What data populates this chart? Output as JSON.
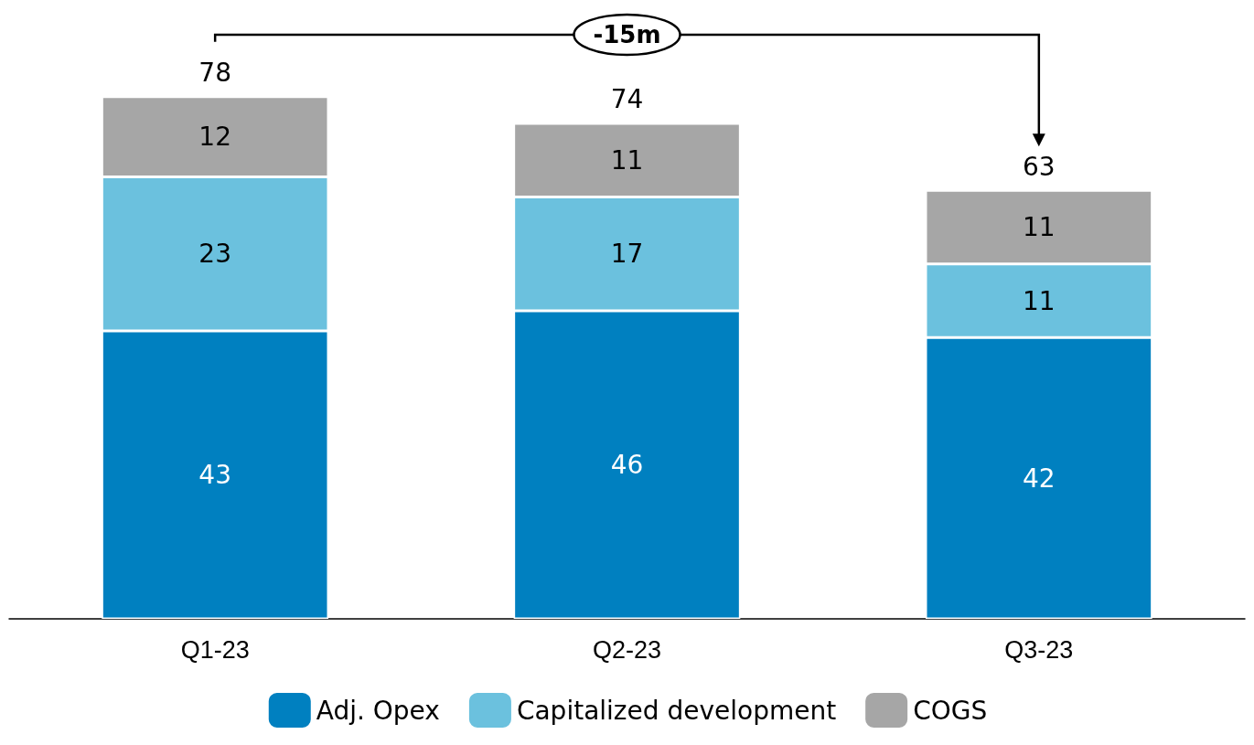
{
  "chart_data": {
    "type": "bar",
    "stacked": true,
    "categories": [
      "Q1-23",
      "Q2-23",
      "Q3-23"
    ],
    "series": [
      {
        "name": "Adj. Opex",
        "color": "#0080c0",
        "values": [
          43,
          46,
          42
        ]
      },
      {
        "name": "Capitalized development",
        "color": "#6bc1de",
        "values": [
          23,
          17,
          11
        ]
      },
      {
        "name": "COGS",
        "color": "#a6a6a6",
        "values": [
          12,
          11,
          11
        ]
      }
    ],
    "data_labels": true,
    "totals": [
      "78",
      "74",
      "63"
    ],
    "annotations": [
      "-15m"
    ],
    "legend": "bottom",
    "grid": false
  }
}
